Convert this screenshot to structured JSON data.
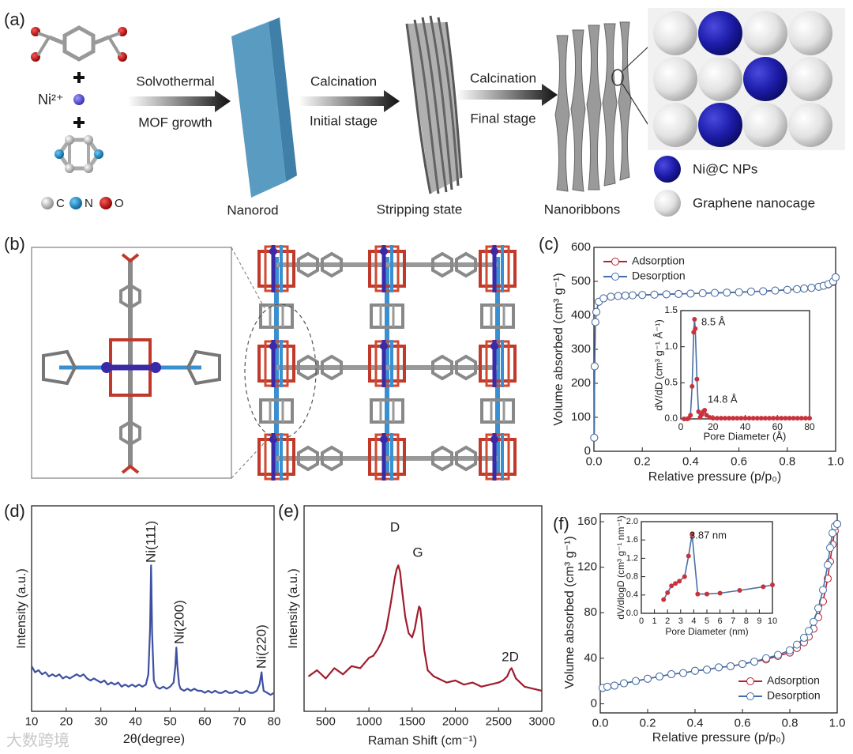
{
  "diagram": {
    "panel_a": "(a)",
    "panel_b": "(b)",
    "ni_ion": "Ni²⁺",
    "atom_legend": [
      "C",
      "N",
      "O"
    ],
    "steps": [
      {
        "top": "Solvothermal",
        "bottom": "MOF growth"
      },
      {
        "top": "Calcination",
        "bottom": "Initial stage"
      },
      {
        "top": "Calcination",
        "bottom": "Final stage"
      }
    ],
    "stages": [
      "Nanorod",
      "Stripping state",
      "Nanoribbons"
    ],
    "legend": [
      "Ni@C NPs",
      "Graphene nanocage"
    ],
    "watermark": "大数跨境"
  },
  "chart_data": [
    {
      "type": "line",
      "panel": "(c)",
      "xlabel": "Relative pressure (p/p₀)",
      "ylabel": "Volume absorbed (cm³ g⁻¹)",
      "xlim": [
        0,
        1
      ],
      "ylim": [
        0,
        600
      ],
      "xticks": [
        {
          "value": 0,
          "label": "0.0"
        },
        0.2,
        0.4,
        0.6,
        0.8,
        {
          "value": 1,
          "label": "1.0"
        }
      ],
      "yticks": [
        0,
        100,
        200,
        300,
        400,
        500,
        600
      ],
      "legend": "upper left",
      "marker": "circle",
      "x": [
        0.001,
        0.003,
        0.006,
        0.01,
        0.02,
        0.04,
        0.07,
        0.1,
        0.13,
        0.16,
        0.2,
        0.25,
        0.3,
        0.35,
        0.4,
        0.45,
        0.5,
        0.55,
        0.6,
        0.65,
        0.7,
        0.75,
        0.8,
        0.84,
        0.87,
        0.9,
        0.93,
        0.95,
        0.97,
        0.99,
        1.0
      ],
      "series": [
        {
          "name": "Adsorption",
          "color": "#b22234",
          "values": [
            40,
            250,
            380,
            410,
            440,
            450,
            455,
            457,
            458,
            459,
            460,
            461,
            462,
            463,
            464,
            465,
            466,
            467,
            468,
            470,
            471,
            473,
            475,
            477,
            479,
            481,
            484,
            487,
            491,
            498,
            512
          ]
        },
        {
          "name": "Desorption",
          "color": "#3f6fa8",
          "values": [
            40,
            250,
            380,
            410,
            440,
            450,
            455,
            457,
            458,
            459,
            460,
            461,
            462,
            463,
            464,
            465,
            466,
            467,
            468,
            470,
            471,
            473,
            475,
            477,
            479,
            481,
            484,
            487,
            492,
            500,
            512
          ]
        }
      ]
    },
    {
      "type": "line",
      "xlabel": "Pore Diameter (Å)",
      "ylabel": "dV/dD (cm³ g⁻¹ Å⁻¹)",
      "xlim": [
        0,
        80
      ],
      "ylim": [
        0,
        1.5
      ],
      "xticks": [
        0,
        20,
        40,
        60,
        80
      ],
      "yticks": [
        {
          "value": 0,
          "label": "0.0"
        },
        0.5,
        {
          "value": 1,
          "label": "1.0"
        },
        1.5
      ],
      "marker": "circle",
      "annotations": [
        "8.5 Å",
        "14.8 Å"
      ],
      "x": [
        2,
        4,
        5,
        6,
        7,
        8,
        8.5,
        9,
        10,
        11,
        12,
        13,
        14,
        14.8,
        16,
        18,
        20,
        22.5,
        25,
        27.5,
        30,
        32.5,
        35,
        37.5,
        40,
        42.5,
        45,
        47.5,
        50,
        52.5,
        55,
        57.5,
        60,
        62.5,
        65,
        67.5,
        70,
        72.5,
        75,
        77.5,
        80
      ],
      "series": [
        {
          "color": "#4a6fa5",
          "marker_fill": "#c8323c",
          "values": [
            0,
            0,
            0.01,
            0.05,
            0.45,
            1.2,
            1.38,
            1.25,
            0.55,
            0.1,
            0.02,
            0.06,
            0.1,
            0.12,
            0.05,
            0.02,
            0.01,
            0.01,
            0.01,
            0.01,
            0.01,
            0.01,
            0.01,
            0.01,
            0.01,
            0.01,
            0.01,
            0.01,
            0.01,
            0.01,
            0.01,
            0.01,
            0.01,
            0.01,
            0.01,
            0.01,
            0.01,
            0.01,
            0.01,
            0.01,
            0.01
          ]
        }
      ]
    },
    {
      "type": "line",
      "panel": "(d)",
      "xlabel": "2θ(degree)",
      "ylabel": "Intensity (a.u.)",
      "xlim": [
        10,
        80
      ],
      "ylim": [
        0,
        100
      ],
      "xticks": [
        10,
        20,
        30,
        40,
        50,
        60,
        70,
        80
      ],
      "annotations": [
        "Ni(111)",
        "Ni(200)",
        "Ni(220)"
      ],
      "x": [
        10,
        11,
        12,
        13,
        14,
        15,
        16,
        17,
        18,
        19,
        20,
        21,
        22,
        23,
        24,
        25,
        26,
        27,
        28,
        29,
        30,
        31,
        32,
        33,
        34,
        35,
        36,
        37,
        38,
        39,
        40,
        41,
        42,
        43,
        43.7,
        44.2,
        44.5,
        44.8,
        45.3,
        46,
        47,
        48,
        49,
        50,
        51,
        51.5,
        51.8,
        52.1,
        52.6,
        53,
        54,
        55,
        56,
        57,
        58,
        59,
        60,
        61,
        62,
        63,
        64,
        65,
        66,
        67,
        68,
        69,
        70,
        71,
        72,
        73,
        74,
        75,
        75.8,
        76.2,
        76.4,
        76.6,
        77,
        78,
        79,
        80
      ],
      "series": [
        {
          "color": "#3d4fa0",
          "values": [
            22,
            19,
            20,
            18,
            19,
            17,
            18,
            17,
            18,
            16,
            17,
            16,
            17,
            18,
            17,
            18,
            16,
            15,
            16,
            15,
            14,
            15,
            13,
            14,
            13,
            14,
            12,
            13,
            12,
            13,
            12,
            13,
            12,
            13,
            18,
            40,
            71,
            38,
            15,
            12,
            11,
            12,
            11,
            12,
            14,
            22,
            31,
            22,
            13,
            11,
            10,
            11,
            10,
            11,
            10,
            10,
            9,
            10,
            9,
            10,
            9,
            9,
            10,
            9,
            9,
            10,
            9,
            9,
            10,
            9,
            9,
            10,
            13,
            17,
            19,
            15,
            10,
            9,
            8,
            9
          ]
        }
      ]
    },
    {
      "type": "line",
      "panel": "(e)",
      "xlabel": "Raman Shift (cm⁻¹)",
      "ylabel": "Intensity (a.u.)",
      "xlim": [
        250,
        3000
      ],
      "ylim": [
        0,
        100
      ],
      "xticks": [
        500,
        1000,
        1500,
        2000,
        2500,
        3000
      ],
      "annotations": [
        "D",
        "G",
        "2D"
      ],
      "x": [
        300,
        400,
        500,
        600,
        700,
        800,
        900,
        1000,
        1050,
        1100,
        1150,
        1200,
        1250,
        1300,
        1320,
        1340,
        1360,
        1380,
        1420,
        1460,
        1500,
        1530,
        1560,
        1580,
        1595,
        1610,
        1640,
        1680,
        1750,
        1800,
        1900,
        2000,
        2100,
        2200,
        2300,
        2400,
        2500,
        2550,
        2600,
        2630,
        2650,
        2670,
        2700,
        2750,
        2800,
        2900,
        3000
      ],
      "series": [
        {
          "color": "#a01c2c",
          "values": [
            17,
            20,
            16,
            21,
            18,
            22,
            21,
            26,
            27,
            30,
            34,
            40,
            52,
            65,
            69,
            71,
            68,
            60,
            46,
            38,
            36,
            40,
            47,
            51,
            50,
            44,
            30,
            20,
            17,
            16,
            14,
            15,
            13,
            14,
            12,
            13,
            14,
            15,
            17,
            20,
            21,
            19,
            16,
            14,
            12,
            11,
            10
          ]
        }
      ]
    },
    {
      "type": "line",
      "panel": "(f)",
      "xlabel": "Relative pressure (p/p₀)",
      "ylabel": "Volume absorbed (cm³ g⁻¹)",
      "xlim": [
        0,
        1
      ],
      "ylim": [
        -8,
        167
      ],
      "xticks": [
        {
          "value": 0,
          "label": "0.0"
        },
        0.2,
        0.4,
        0.6,
        0.8,
        {
          "value": 1,
          "label": "1.0"
        }
      ],
      "yticks": [
        0,
        40,
        80,
        120,
        160
      ],
      "legend": "lower right",
      "marker": "circle",
      "x": [
        0.01,
        0.03,
        0.06,
        0.1,
        0.15,
        0.2,
        0.25,
        0.3,
        0.35,
        0.4,
        0.45,
        0.5,
        0.55,
        0.6,
        0.65,
        0.7,
        0.75,
        0.8,
        0.83,
        0.86,
        0.88,
        0.9,
        0.92,
        0.94,
        0.96,
        0.97,
        0.98,
        0.99,
        1.0
      ],
      "series": [
        {
          "name": "Adsorption",
          "color": "#b22234",
          "values": [
            14,
            15,
            16,
            18,
            20,
            22,
            24,
            26,
            27,
            29,
            30,
            32,
            33,
            35,
            37,
            39,
            42,
            45,
            49,
            54,
            59,
            66,
            76,
            90,
            110,
            125,
            140,
            152,
            158
          ]
        },
        {
          "name": "Desorption",
          "color": "#3f6fa8",
          "values": [
            14,
            15,
            16,
            18,
            20,
            22,
            24,
            26,
            27,
            29,
            30,
            32,
            33,
            35,
            37,
            40,
            43,
            47,
            52,
            58,
            64,
            72,
            84,
            100,
            122,
            137,
            150,
            156,
            158
          ]
        }
      ]
    },
    {
      "type": "line",
      "xlabel": "Pore Diameter (nm)",
      "ylabel": "dV/dlogD (cm³ g⁻¹ nm⁻¹)",
      "xlim": [
        0,
        10
      ],
      "ylim": [
        0,
        2
      ],
      "xticks": [
        0,
        1,
        2,
        3,
        4,
        5,
        6,
        7,
        8,
        9,
        10
      ],
      "yticks": [
        {
          "value": 0,
          "label": "0.0"
        },
        0.4,
        0.8,
        1.2,
        1.6,
        {
          "value": 2,
          "label": "2.0"
        }
      ],
      "marker": "circle",
      "annotations": [
        "3.87 nm"
      ],
      "x": [
        1.7,
        2.0,
        2.3,
        2.6,
        2.9,
        3.3,
        3.6,
        3.87,
        4.3,
        5.0,
        6.0,
        7.5,
        9.3,
        10
      ],
      "series": [
        {
          "color": "#4a6fa5",
          "marker_fill": "#c8323c",
          "values": [
            0.3,
            0.45,
            0.6,
            0.65,
            0.7,
            0.8,
            1.25,
            1.72,
            0.42,
            0.42,
            0.44,
            0.5,
            0.58,
            0.62
          ]
        }
      ]
    }
  ]
}
